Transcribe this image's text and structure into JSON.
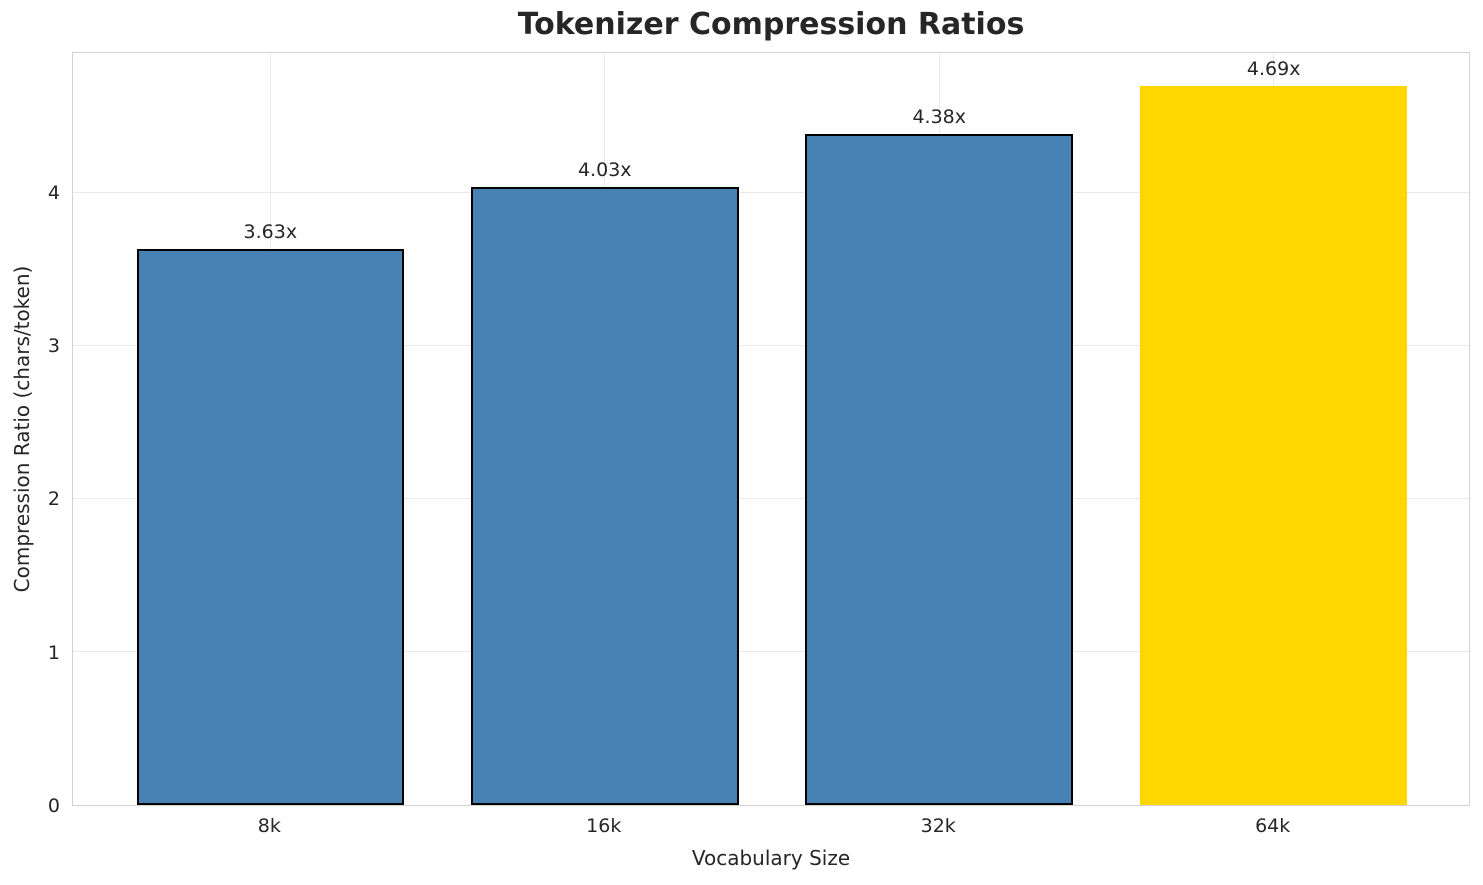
{
  "chart_data": {
    "type": "bar",
    "title": "Tokenizer Compression Ratios",
    "xlabel": "Vocabulary Size",
    "ylabel": "Compression Ratio (chars/token)",
    "categories": [
      "8k",
      "16k",
      "32k",
      "64k"
    ],
    "values": [
      3.63,
      4.03,
      4.38,
      4.69
    ],
    "bar_labels": [
      "3.63x",
      "4.03x",
      "4.38x",
      "4.69x"
    ],
    "yticks": [
      0,
      1,
      2,
      3,
      4
    ],
    "ylim": [
      0,
      4.92
    ],
    "grid": true,
    "legend_position": "none",
    "bar_colors": [
      "#4682B4",
      "#4682B4",
      "#4682B4",
      "#FFD700"
    ],
    "bar_edge_colors": [
      "#000000",
      "#000000",
      "#000000",
      "#FFD700"
    ],
    "highlight": {
      "category": "64k",
      "color": "#FFD700"
    }
  },
  "style": {
    "grid_color": "#e9e9e9",
    "spine_color": "#d2d2d2",
    "text_color": "#262626",
    "background": "#ffffff"
  }
}
